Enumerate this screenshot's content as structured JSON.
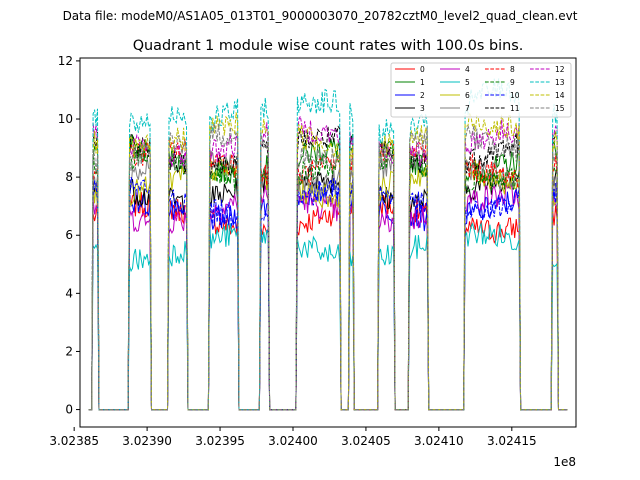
{
  "suptitle": "Data file: modeM0/AS1A05_013T01_9000003070_20782cztM0_level2_quad_clean.evt",
  "chart_data": {
    "type": "line",
    "title": "Quadrant 1 module wise count rates with 100.0s bins.",
    "xlabel": "",
    "ylabel": "",
    "offset_label": "1e8",
    "xlim": [
      302385400,
      302419400
    ],
    "ylim": [
      -0.6,
      12.1
    ],
    "xticks": [
      302385000,
      302390000,
      302395000,
      302400000,
      302405000,
      302410000,
      302415000
    ],
    "xtick_labels": [
      "3.02385",
      "3.02390",
      "3.02395",
      "3.02400",
      "3.02405",
      "3.02410",
      "3.02415"
    ],
    "yticks": [
      0,
      2,
      4,
      6,
      8,
      10,
      12
    ],
    "ytick_labels": [
      "0",
      "2",
      "4",
      "6",
      "8",
      "10",
      "12"
    ],
    "grid": false,
    "legend_position": "top-right",
    "active_intervals": [
      [
        302386300,
        302386600
      ],
      [
        302388800,
        302390200
      ],
      [
        302391500,
        302392700
      ],
      [
        302394300,
        302396200
      ],
      [
        302397800,
        302398300
      ],
      [
        302400300,
        302403200
      ],
      [
        302403900,
        302404100
      ],
      [
        302405900,
        302406900
      ],
      [
        302408000,
        302409200
      ],
      [
        302411800,
        302415500
      ],
      [
        302417800,
        302418100
      ]
    ],
    "series": [
      {
        "name": "0",
        "color": "#ff0000",
        "dash": "solid",
        "level": 6.6
      },
      {
        "name": "1",
        "color": "#008000",
        "dash": "solid",
        "level": 8.6
      },
      {
        "name": "2",
        "color": "#0000ff",
        "dash": "solid",
        "level": 7.0
      },
      {
        "name": "3",
        "color": "#000000",
        "dash": "solid",
        "level": 7.6
      },
      {
        "name": "4",
        "color": "#bf00bf",
        "dash": "solid",
        "level": 6.9
      },
      {
        "name": "5",
        "color": "#00bfbf",
        "dash": "solid",
        "level": 5.6
      },
      {
        "name": "6",
        "color": "#bfbf00",
        "dash": "solid",
        "level": 7.8
      },
      {
        "name": "7",
        "color": "#808080",
        "dash": "solid",
        "level": 8.2
      },
      {
        "name": "8",
        "color": "#ff0000",
        "dash": "dashed",
        "level": 8.5
      },
      {
        "name": "9",
        "color": "#008000",
        "dash": "dashed",
        "level": 8.3
      },
      {
        "name": "10",
        "color": "#0000ff",
        "dash": "dashed",
        "level": 7.2
      },
      {
        "name": "11",
        "color": "#000000",
        "dash": "dashed",
        "level": 8.9
      },
      {
        "name": "12",
        "color": "#bf00bf",
        "dash": "dashed",
        "level": 9.2
      },
      {
        "name": "13",
        "color": "#00bfbf",
        "dash": "dashed",
        "level": 10.0
      },
      {
        "name": "14",
        "color": "#bfbf00",
        "dash": "dashed",
        "level": 9.4
      },
      {
        "name": "15",
        "color": "#808080",
        "dash": "dashed",
        "level": 9.0
      }
    ]
  }
}
